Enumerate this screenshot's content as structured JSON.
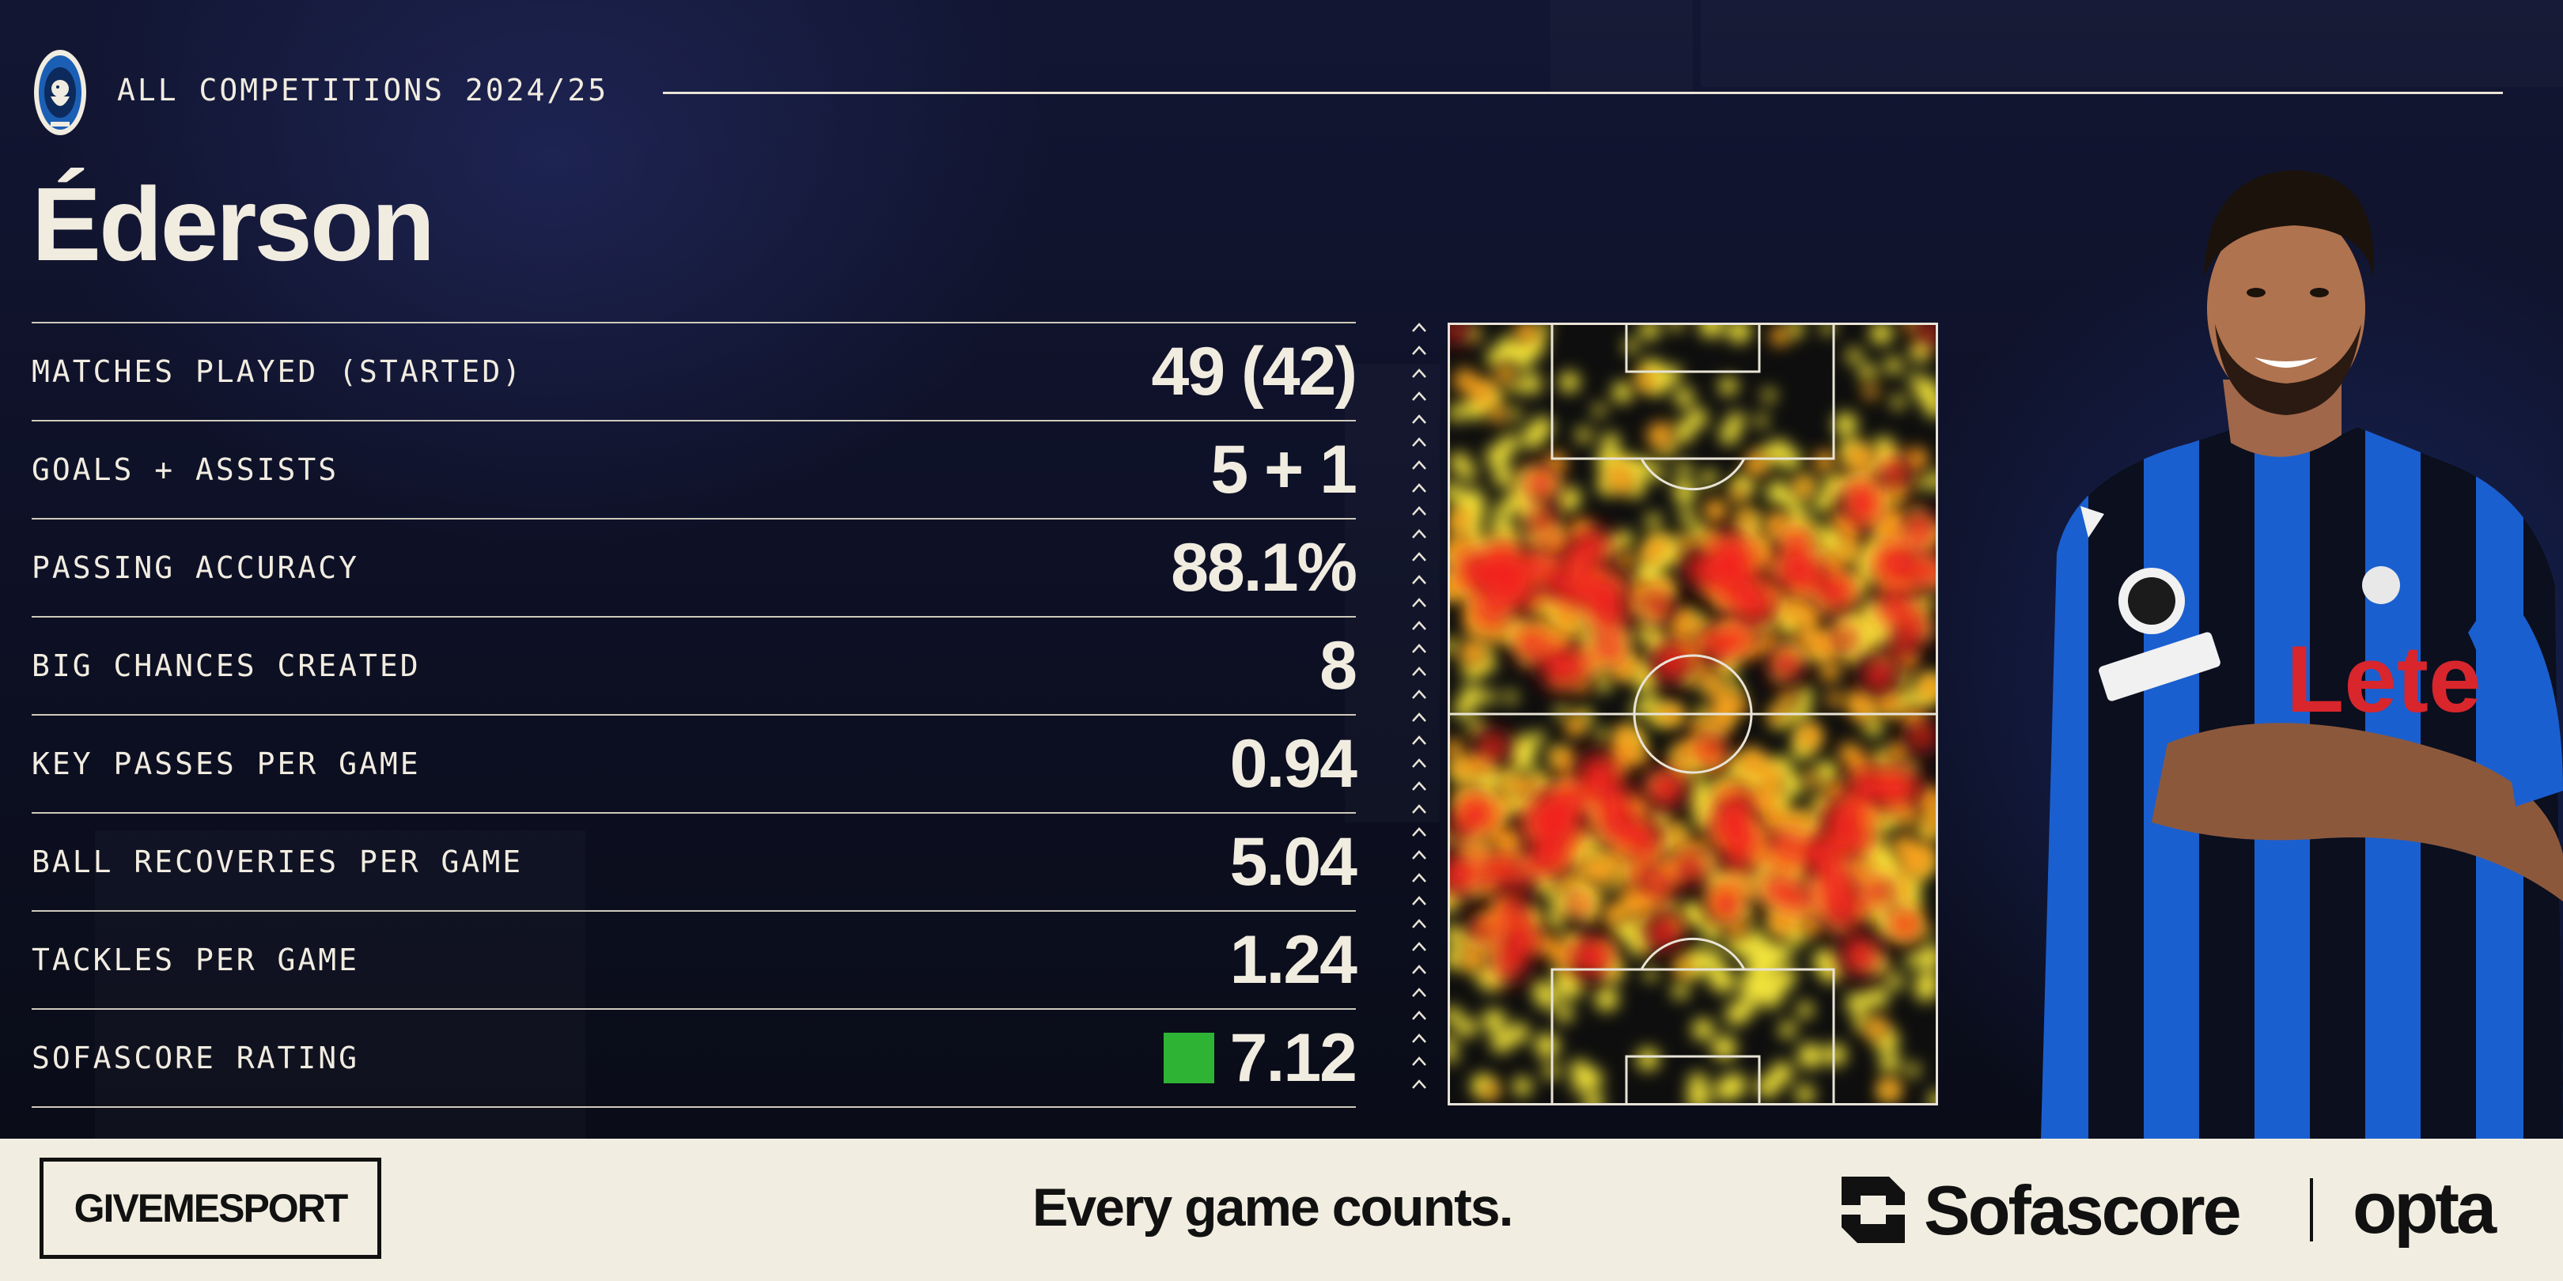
{
  "header": {
    "competition": "ALL COMPETITIONS 2024/25",
    "crest_icon": "atalanta-crest-icon"
  },
  "player": {
    "name": "Éderson",
    "photo_icon": "player-photo"
  },
  "stats": [
    {
      "label": "MATCHES PLAYED (STARTED)",
      "value": "49 (42)"
    },
    {
      "label": "GOALS + ASSISTS",
      "value": "5 + 1"
    },
    {
      "label": "PASSING ACCURACY",
      "value": "88.1%"
    },
    {
      "label": "BIG CHANCES CREATED",
      "value": "8"
    },
    {
      "label": "KEY PASSES PER GAME",
      "value": "0.94"
    },
    {
      "label": "BALL RECOVERIES PER GAME",
      "value": "5.04"
    },
    {
      "label": "TACKLES PER GAME",
      "value": "1.24"
    },
    {
      "label": "SOFASCORE RATING",
      "value": "7.12",
      "rating_color": "#2eb335"
    }
  ],
  "heatmap": {
    "direction_icon": "attack-direction-arrows-icon",
    "colors": {
      "hot": "#f2231a",
      "warm": "#f7a21c",
      "cool": "#f4e53a",
      "pitch": "#0e0e0e",
      "lines": "#e8e3d6"
    }
  },
  "footer": {
    "givemesport": "GIVEMESPORT",
    "tagline": "Every game counts.",
    "sofascore": "Sofascore",
    "opta": "opta",
    "background": "#f1ede0"
  },
  "colors": {
    "background": "#0c0f1f",
    "text": "#f1ece0"
  }
}
